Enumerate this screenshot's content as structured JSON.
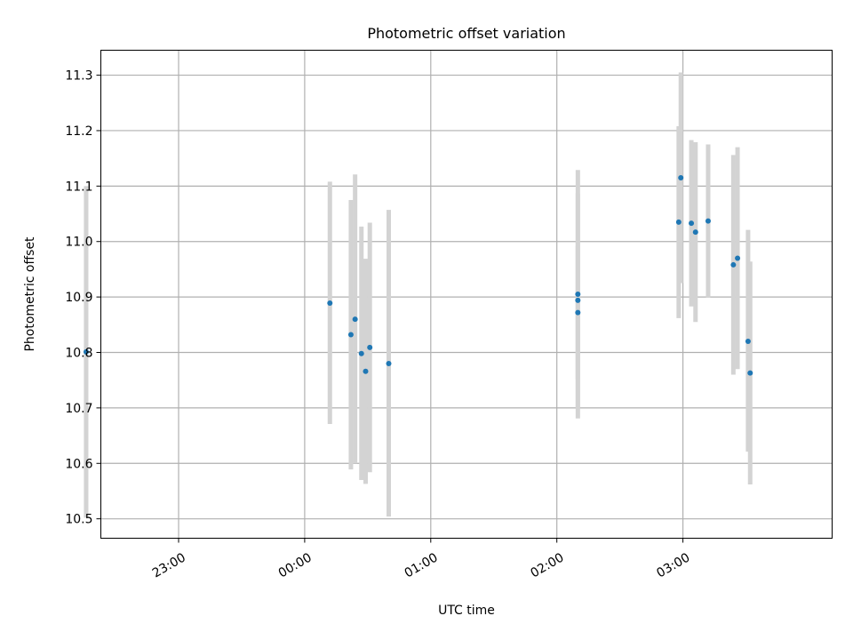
{
  "chart_data": {
    "type": "scatter",
    "title": "Photometric offset variation",
    "xlabel": "UTC time",
    "ylabel": "Photometric offset",
    "grid": true,
    "x_ticks": [
      "23:00",
      "00:00",
      "01:00",
      "02:00",
      "03:00"
    ],
    "x_range": [
      "22:23",
      "04:11"
    ],
    "y_ticks": [
      "10.5",
      "10.6",
      "10.7",
      "10.8",
      "10.9",
      "11.0",
      "11.1",
      "11.2",
      "11.3"
    ],
    "ylim": [
      10.465,
      11.345
    ],
    "colors": {
      "point": "#1f77b4",
      "errorbar": "#d3d3d3",
      "grid": "#b0b0b0"
    },
    "points": [
      {
        "x": "22:16",
        "y": 10.801,
        "ylow": 10.502,
        "yhigh": 11.1
      },
      {
        "x": "00:12",
        "y": 10.889,
        "ylow": 10.671,
        "yhigh": 11.108
      },
      {
        "x": "00:22",
        "y": 10.832,
        "ylow": 10.589,
        "yhigh": 11.075
      },
      {
        "x": "00:24",
        "y": 10.86,
        "ylow": 10.6,
        "yhigh": 11.121
      },
      {
        "x": "00:27",
        "y": 10.798,
        "ylow": 10.57,
        "yhigh": 11.027
      },
      {
        "x": "00:29",
        "y": 10.766,
        "ylow": 10.563,
        "yhigh": 10.969
      },
      {
        "x": "00:31",
        "y": 10.809,
        "ylow": 10.584,
        "yhigh": 11.034
      },
      {
        "x": "00:40",
        "y": 10.78,
        "ylow": 10.504,
        "yhigh": 11.057
      },
      {
        "x": "02:10",
        "y": 10.894,
        "ylow": 10.701,
        "yhigh": 11.087
      },
      {
        "x": "02:10",
        "y": 10.872,
        "ylow": 10.752,
        "yhigh": 10.992
      },
      {
        "x": "02:10",
        "y": 10.905,
        "ylow": 10.681,
        "yhigh": 11.129
      },
      {
        "x": "02:58",
        "y": 11.035,
        "ylow": 10.862,
        "yhigh": 11.208
      },
      {
        "x": "02:59",
        "y": 11.115,
        "ylow": 10.925,
        "yhigh": 11.305
      },
      {
        "x": "03:04",
        "y": 11.033,
        "ylow": 10.883,
        "yhigh": 11.183
      },
      {
        "x": "03:06",
        "y": 11.017,
        "ylow": 10.855,
        "yhigh": 11.179
      },
      {
        "x": "03:12",
        "y": 11.037,
        "ylow": 10.899,
        "yhigh": 11.175
      },
      {
        "x": "03:24",
        "y": 10.958,
        "ylow": 10.76,
        "yhigh": 11.156
      },
      {
        "x": "03:26",
        "y": 10.97,
        "ylow": 10.77,
        "yhigh": 11.17
      },
      {
        "x": "03:31",
        "y": 10.82,
        "ylow": 10.621,
        "yhigh": 11.021
      },
      {
        "x": "03:32",
        "y": 10.763,
        "ylow": 10.562,
        "yhigh": 10.964
      }
    ]
  }
}
